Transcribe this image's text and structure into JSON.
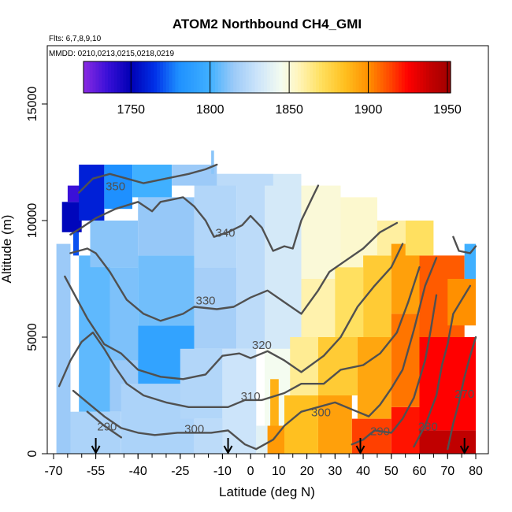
{
  "chart_data": {
    "type": "heatmap",
    "title": "ATOM2 Northbound CH4_GMI",
    "subtitle_flights": "Flts: 6,7,8,9,10",
    "subtitle_dates": "MMDD: 0210,0213,0215,0218,0219",
    "xlabel": "Latitude (deg N)",
    "ylabel": "Altitude (m)",
    "xlim": [
      -70,
      80
    ],
    "ylim": [
      0,
      17500
    ],
    "x_ticks": [
      {
        "value": -70,
        "label": "-70"
      },
      {
        "value": -55,
        "label": "-55"
      },
      {
        "value": -40,
        "label": "-40"
      },
      {
        "value": -25,
        "label": "-25"
      },
      {
        "value": -10,
        "label": "-10"
      },
      {
        "value": 0,
        "label": "0"
      },
      {
        "value": 10,
        "label": "10"
      },
      {
        "value": 20,
        "label": "20"
      },
      {
        "value": 30,
        "label": "30"
      },
      {
        "value": 40,
        "label": "40"
      },
      {
        "value": 50,
        "label": "50"
      },
      {
        "value": 60,
        "label": "60"
      },
      {
        "value": 70,
        "label": "70"
      },
      {
        "value": 80,
        "label": "80"
      }
    ],
    "y_ticks": [
      {
        "value": 0,
        "label": "0"
      },
      {
        "value": 5000,
        "label": "5000"
      },
      {
        "value": 10000,
        "label": "10000"
      },
      {
        "value": 15000,
        "label": "15000"
      }
    ],
    "colorbar": {
      "min": 1720,
      "max": 1952,
      "ticks": [
        {
          "value": 1750,
          "label": "1750"
        },
        {
          "value": 1800,
          "label": "1800"
        },
        {
          "value": 1850,
          "label": "1850"
        },
        {
          "value": 1900,
          "label": "1900"
        },
        {
          "value": 1950,
          "label": "1950"
        }
      ],
      "stops": [
        {
          "v": 1720,
          "c": "#8a2be2"
        },
        {
          "v": 1735,
          "c": "#3a10d8"
        },
        {
          "v": 1750,
          "c": "#0000b4"
        },
        {
          "v": 1765,
          "c": "#0030e8"
        },
        {
          "v": 1780,
          "c": "#1e90ff"
        },
        {
          "v": 1800,
          "c": "#40b0ff"
        },
        {
          "v": 1815,
          "c": "#9ccaf8"
        },
        {
          "v": 1830,
          "c": "#cce4fa"
        },
        {
          "v": 1845,
          "c": "#f4fcf0"
        },
        {
          "v": 1855,
          "c": "#fff6c0"
        },
        {
          "v": 1870,
          "c": "#ffe060"
        },
        {
          "v": 1885,
          "c": "#ffc020"
        },
        {
          "v": 1900,
          "c": "#ff9000"
        },
        {
          "v": 1915,
          "c": "#ff4000"
        },
        {
          "v": 1925,
          "c": "#ff0000"
        },
        {
          "v": 1940,
          "c": "#c00000"
        },
        {
          "v": 1952,
          "c": "#a00000"
        }
      ]
    },
    "cells": [
      {
        "x1": -69,
        "x2": -64,
        "y1": 0,
        "y2": 9000,
        "v": 1815
      },
      {
        "x1": -64,
        "x2": -46,
        "y1": 0,
        "y2": 1800,
        "v": 1820
      },
      {
        "x1": -61,
        "x2": -50,
        "y1": 1800,
        "y2": 8500,
        "v": 1805
      },
      {
        "x1": -50,
        "x2": -40,
        "y1": 1800,
        "y2": 4000,
        "v": 1815
      },
      {
        "x1": -50,
        "x2": -40,
        "y1": 4000,
        "y2": 8000,
        "v": 1810
      },
      {
        "x1": -57,
        "x2": -40,
        "y1": 8000,
        "y2": 10000,
        "v": 1812
      },
      {
        "x1": -46,
        "x2": -20,
        "y1": 0,
        "y2": 3000,
        "v": 1820
      },
      {
        "x1": -40,
        "x2": -20,
        "y1": 3000,
        "y2": 5500,
        "v": 1792
      },
      {
        "x1": -40,
        "x2": -20,
        "y1": 5500,
        "y2": 8500,
        "v": 1808
      },
      {
        "x1": -40,
        "x2": -20,
        "y1": 8500,
        "y2": 11000,
        "v": 1814
      },
      {
        "x1": -25,
        "x2": -10,
        "y1": 1500,
        "y2": 4500,
        "v": 1822
      },
      {
        "x1": -20,
        "x2": -5,
        "y1": 4500,
        "y2": 8000,
        "v": 1818
      },
      {
        "x1": -20,
        "x2": -5,
        "y1": 8000,
        "y2": 12000,
        "v": 1822
      },
      {
        "x1": -20,
        "x2": -5,
        "y1": 0,
        "y2": 1500,
        "v": 1825
      },
      {
        "x1": -10,
        "x2": 2,
        "y1": 0,
        "y2": 4500,
        "v": 1830
      },
      {
        "x1": -5,
        "x2": 5,
        "y1": 4500,
        "y2": 12000,
        "v": 1825
      },
      {
        "x1": 2,
        "x2": 7,
        "y1": 0,
        "y2": 1200,
        "v": 1838
      },
      {
        "x1": 5,
        "x2": 14,
        "y1": 1200,
        "y2": 4500,
        "v": 1845
      },
      {
        "x1": 5,
        "x2": 18,
        "y1": 4500,
        "y2": 12000,
        "v": 1833
      },
      {
        "x1": 7,
        "x2": 10,
        "y1": 1200,
        "y2": 3200,
        "v": 1890
      },
      {
        "x1": 6,
        "x2": 12,
        "y1": 0,
        "y2": 1200,
        "v": 1897
      },
      {
        "x1": 12,
        "x2": 24,
        "y1": 0,
        "y2": 2500,
        "v": 1885
      },
      {
        "x1": 14,
        "x2": 24,
        "y1": 2500,
        "y2": 5000,
        "v": 1862
      },
      {
        "x1": 18,
        "x2": 30,
        "y1": 5000,
        "y2": 7500,
        "v": 1858
      },
      {
        "x1": 18,
        "x2": 32,
        "y1": 7500,
        "y2": 11500,
        "v": 1850
      },
      {
        "x1": 24,
        "x2": 36,
        "y1": 0,
        "y2": 2500,
        "v": 1895
      },
      {
        "x1": 24,
        "x2": 38,
        "y1": 2500,
        "y2": 5000,
        "v": 1880
      },
      {
        "x1": 30,
        "x2": 40,
        "y1": 5000,
        "y2": 8000,
        "v": 1870
      },
      {
        "x1": 32,
        "x2": 45,
        "y1": 8000,
        "y2": 11000,
        "v": 1852
      },
      {
        "x1": 36,
        "x2": 50,
        "y1": 0,
        "y2": 1500,
        "v": 1915
      },
      {
        "x1": 38,
        "x2": 50,
        "y1": 1500,
        "y2": 5000,
        "v": 1893
      },
      {
        "x1": 40,
        "x2": 50,
        "y1": 5000,
        "y2": 8500,
        "v": 1880
      },
      {
        "x1": 45,
        "x2": 55,
        "y1": 8500,
        "y2": 10000,
        "v": 1860
      },
      {
        "x1": 50,
        "x2": 60,
        "y1": 0,
        "y2": 2000,
        "v": 1922
      },
      {
        "x1": 50,
        "x2": 60,
        "y1": 2000,
        "y2": 6000,
        "v": 1905
      },
      {
        "x1": 50,
        "x2": 60,
        "y1": 6000,
        "y2": 9000,
        "v": 1895
      },
      {
        "x1": 60,
        "x2": 80,
        "y1": 0,
        "y2": 1000,
        "v": 1940
      },
      {
        "x1": 60,
        "x2": 80,
        "y1": 1000,
        "y2": 5000,
        "v": 1925
      },
      {
        "x1": 60,
        "x2": 76,
        "y1": 5000,
        "y2": 8500,
        "v": 1910
      },
      {
        "x1": 70,
        "x2": 80,
        "y1": 5500,
        "y2": 7500,
        "v": 1900
      },
      {
        "x1": 55,
        "x2": 65,
        "y1": 8500,
        "y2": 10000,
        "v": 1870
      },
      {
        "x1": 76,
        "x2": 80,
        "y1": 7500,
        "y2": 9000,
        "v": 1800
      },
      {
        "x1": -63,
        "x2": -61,
        "y1": 8500,
        "y2": 10200,
        "v": 1770
      },
      {
        "x1": -67,
        "x2": -60,
        "y1": 9500,
        "y2": 10800,
        "v": 1752
      },
      {
        "x1": -65,
        "x2": -58,
        "y1": 10800,
        "y2": 11500,
        "v": 1735
      },
      {
        "x1": -61,
        "x2": -52,
        "y1": 10000,
        "y2": 12400,
        "v": 1760
      },
      {
        "x1": -52,
        "x2": -42,
        "y1": 10500,
        "y2": 12400,
        "v": 1780
      },
      {
        "x1": -42,
        "x2": -28,
        "y1": 11000,
        "y2": 12400,
        "v": 1800
      },
      {
        "x1": -28,
        "x2": -12,
        "y1": 11500,
        "y2": 12400,
        "v": 1815
      },
      {
        "x1": -12,
        "x2": 8,
        "y1": 11500,
        "y2": 12000,
        "v": 1825
      },
      {
        "x1": -14,
        "x2": -13,
        "y1": 12000,
        "y2": 13000,
        "v": 1812
      }
    ],
    "contours": [
      {
        "label": "350",
        "label_pos": [
          -48,
          11300
        ],
        "points": [
          [
            -61,
            11200
          ],
          [
            -56,
            11800
          ],
          [
            -50,
            12000
          ],
          [
            -44,
            11800
          ],
          [
            -38,
            11600
          ],
          [
            -30,
            11800
          ],
          [
            -22,
            12000
          ],
          [
            -16,
            12200
          ],
          [
            -12,
            12400
          ]
        ]
      },
      {
        "label": "340",
        "label_pos": [
          -9,
          9300
        ],
        "points": [
          [
            -64,
            9400
          ],
          [
            -60,
            9700
          ],
          [
            -55,
            10100
          ],
          [
            -48,
            10500
          ],
          [
            -40,
            10800
          ],
          [
            -35,
            10400
          ],
          [
            -32,
            10800
          ],
          [
            -28,
            10900
          ],
          [
            -24,
            11000
          ],
          [
            -20,
            10600
          ],
          [
            -16,
            10000
          ],
          [
            -13,
            9300
          ],
          [
            -8,
            9500
          ],
          [
            -3,
            9800
          ],
          [
            0,
            10200
          ],
          [
            4,
            9700
          ],
          [
            8,
            8700
          ],
          [
            12,
            8900
          ],
          [
            15,
            8800
          ],
          [
            18,
            10000
          ],
          [
            22,
            11000
          ],
          [
            24,
            11500
          ]
        ]
      },
      {
        "label": "330",
        "label_pos": [
          -16,
          6400
        ],
        "points": [
          [
            -64,
            8600
          ],
          [
            -58,
            8800
          ],
          [
            -55,
            8600
          ],
          [
            -50,
            7800
          ],
          [
            -44,
            6600
          ],
          [
            -38,
            6000
          ],
          [
            -32,
            5700
          ],
          [
            -24,
            6000
          ],
          [
            -20,
            6300
          ],
          [
            -12,
            6200
          ],
          [
            -6,
            6300
          ],
          [
            0,
            6700
          ],
          [
            6,
            7000
          ],
          [
            12,
            6500
          ],
          [
            18,
            6000
          ],
          [
            24,
            7000
          ],
          [
            28,
            7800
          ],
          [
            34,
            8300
          ],
          [
            40,
            8800
          ],
          [
            46,
            9500
          ],
          [
            52,
            9900
          ]
        ]
      },
      {
        "label": "320",
        "label_pos": [
          4,
          4500
        ],
        "points": [
          [
            -66,
            7600
          ],
          [
            -62,
            6700
          ],
          [
            -58,
            5800
          ],
          [
            -52,
            4700
          ],
          [
            -46,
            4300
          ],
          [
            -40,
            3600
          ],
          [
            -32,
            3300
          ],
          [
            -24,
            3200
          ],
          [
            -16,
            3400
          ],
          [
            -10,
            4200
          ],
          [
            -4,
            4300
          ],
          [
            0,
            4100
          ],
          [
            6,
            4400
          ],
          [
            12,
            4000
          ],
          [
            18,
            3500
          ],
          [
            26,
            4200
          ],
          [
            32,
            5000
          ],
          [
            38,
            6300
          ],
          [
            44,
            7200
          ],
          [
            50,
            8000
          ],
          [
            54,
            9000
          ]
        ]
      },
      {
        "label": "310",
        "label_pos": [
          0,
          2300
        ],
        "points": [
          [
            -68,
            2900
          ],
          [
            -64,
            4000
          ],
          [
            -60,
            4800
          ],
          [
            -56,
            5200
          ],
          [
            -52,
            4500
          ],
          [
            -48,
            3700
          ],
          [
            -44,
            3000
          ],
          [
            -38,
            2500
          ],
          [
            -30,
            2200
          ],
          [
            -22,
            2000
          ],
          [
            -15,
            2000
          ],
          [
            -8,
            2000
          ],
          [
            -2,
            2300
          ],
          [
            4,
            2300
          ],
          [
            12,
            2600
          ],
          [
            18,
            3000
          ],
          [
            26,
            3000
          ],
          [
            32,
            3600
          ],
          [
            40,
            3800
          ],
          [
            46,
            4300
          ],
          [
            52,
            5200
          ],
          [
            56,
            6500
          ],
          [
            60,
            8000
          ]
        ]
      },
      {
        "label": "300",
        "label_pos": [
          -20,
          900
        ],
        "points": [
          [
            -63,
            2700
          ],
          [
            -58,
            2200
          ],
          [
            -52,
            1600
          ],
          [
            -46,
            1100
          ],
          [
            -40,
            900
          ],
          [
            -34,
            800
          ],
          [
            -26,
            900
          ],
          [
            -14,
            900
          ],
          [
            -8,
            1000
          ],
          [
            -2,
            400
          ],
          [
            2,
            200
          ],
          [
            8,
            600
          ],
          [
            12,
            1200
          ],
          [
            18,
            1800
          ],
          [
            24,
            2000
          ],
          [
            30,
            2200
          ],
          [
            36,
            1900
          ],
          [
            42,
            1600
          ],
          [
            46,
            2100
          ],
          [
            50,
            2800
          ],
          [
            54,
            3600
          ],
          [
            58,
            5300
          ],
          [
            62,
            7200
          ],
          [
            66,
            8400
          ]
        ]
      },
      {
        "label": "300",
        "label_pos": [
          25,
          1600
        ],
        "points": []
      },
      {
        "label": "290",
        "label_pos": [
          -51,
          1000
        ],
        "points": [
          [
            -58,
            1800
          ],
          [
            -52,
            1200
          ],
          [
            -46,
            700
          ]
        ]
      },
      {
        "label": "290",
        "label_pos": [
          46,
          800
        ],
        "points": [
          [
            36,
            400
          ],
          [
            40,
            600
          ],
          [
            44,
            1000
          ],
          [
            50,
            900
          ],
          [
            54,
            1500
          ],
          [
            58,
            2400
          ],
          [
            62,
            4000
          ],
          [
            64,
            5300
          ],
          [
            66,
            6800
          ]
        ]
      },
      {
        "label": "280",
        "label_pos": [
          63,
          1000
        ],
        "points": [
          [
            58,
            300
          ],
          [
            62,
            1200
          ],
          [
            66,
            2500
          ],
          [
            68,
            3800
          ],
          [
            70,
            4700
          ],
          [
            72,
            6000
          ],
          [
            76,
            6800
          ],
          [
            78,
            7200
          ]
        ]
      },
      {
        "label": "270",
        "label_pos": [
          76,
          2400
        ],
        "points": [
          [
            70,
            200
          ],
          [
            72,
            1300
          ],
          [
            74,
            2200
          ],
          [
            76,
            3300
          ],
          [
            78,
            4200
          ],
          [
            80,
            5000
          ]
        ]
      },
      {
        "label": "",
        "label_pos": [
          0,
          0
        ],
        "points": [
          [
            72,
            9300
          ],
          [
            74,
            8700
          ],
          [
            78,
            8600
          ],
          [
            80,
            8900
          ]
        ]
      }
    ],
    "arrows_x": [
      -55,
      -8,
      39,
      76
    ]
  }
}
